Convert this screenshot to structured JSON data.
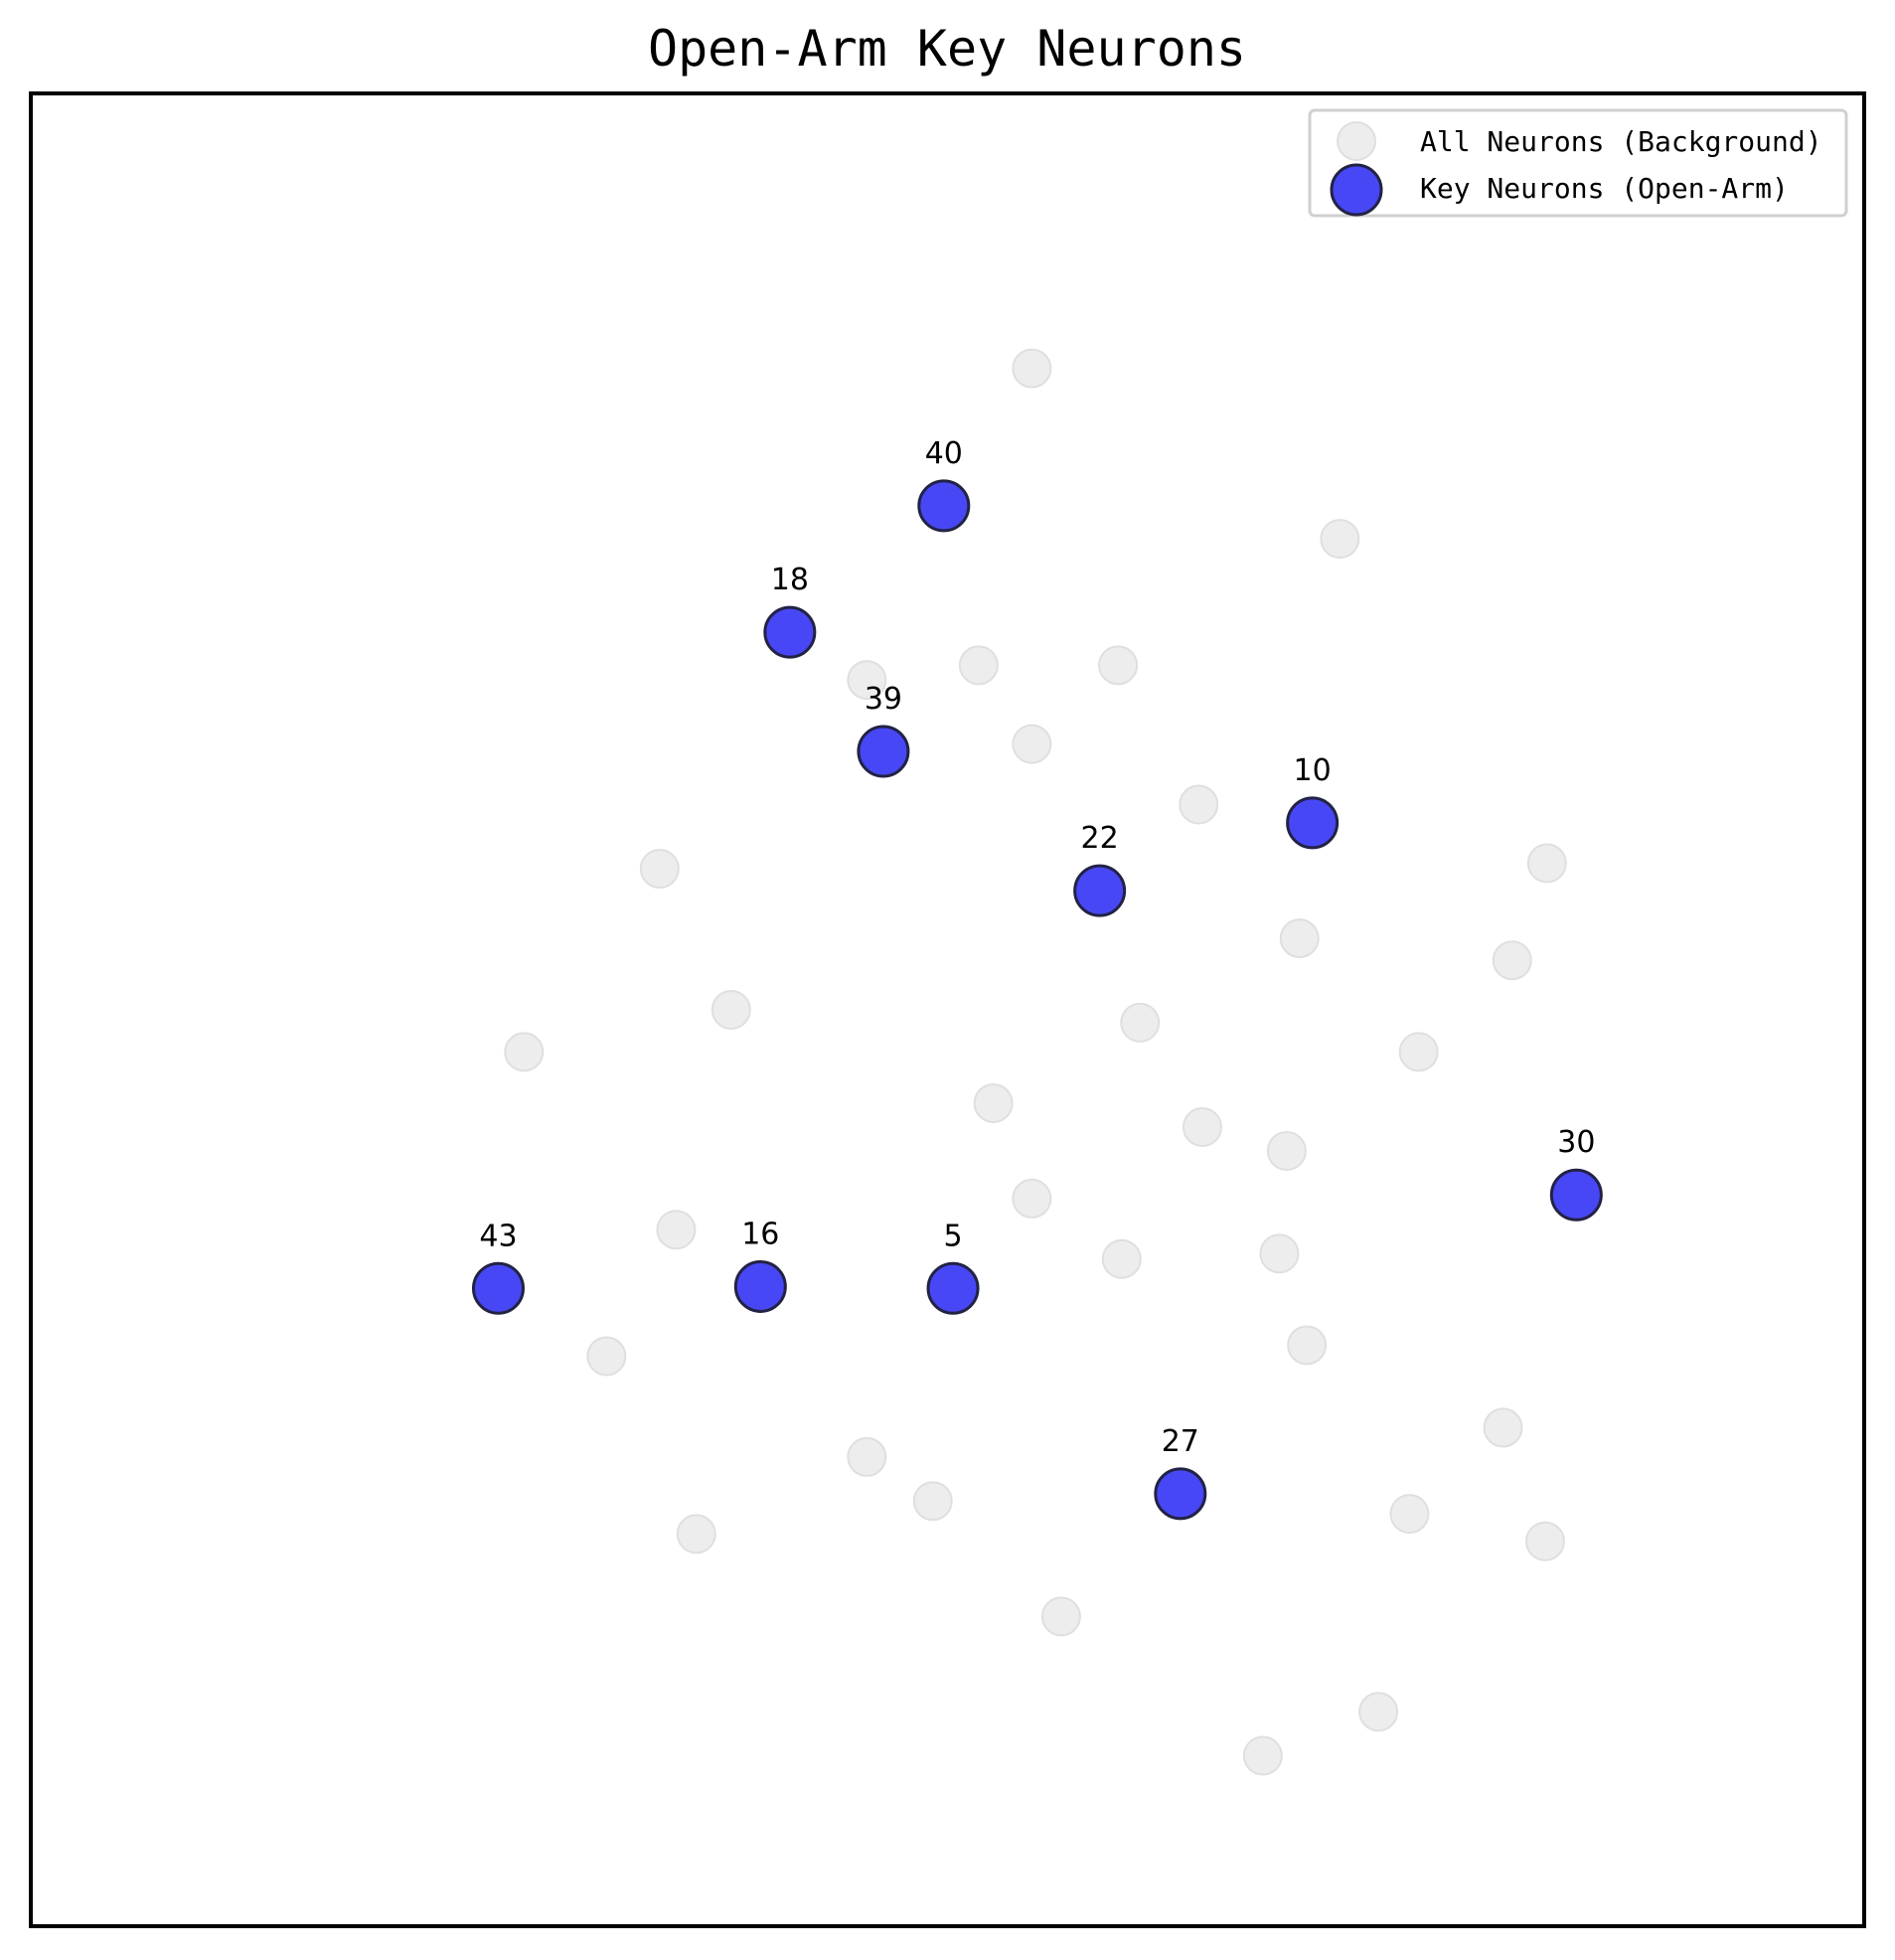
{
  "chart_data": {
    "type": "scatter",
    "title": "Open-Arm Key Neurons",
    "xlabel": "",
    "ylabel": "",
    "xlim": [
      0,
      1000
    ],
    "ylim": [
      0,
      1000
    ],
    "ticks": "none",
    "grid": false,
    "legend_position": "top-right",
    "series": [
      {
        "name": "All Neurons (Background)",
        "color": "#e6e6e6",
        "points": [
          {
            "x": 546,
            "y": 850
          },
          {
            "x": 714,
            "y": 757
          },
          {
            "x": 456,
            "y": 680
          },
          {
            "x": 517,
            "y": 688
          },
          {
            "x": 593,
            "y": 688
          },
          {
            "x": 546,
            "y": 645
          },
          {
            "x": 637,
            "y": 612
          },
          {
            "x": 343,
            "y": 577
          },
          {
            "x": 827,
            "y": 580
          },
          {
            "x": 692,
            "y": 539
          },
          {
            "x": 808,
            "y": 527
          },
          {
            "x": 382,
            "y": 500
          },
          {
            "x": 269,
            "y": 477
          },
          {
            "x": 605,
            "y": 493
          },
          {
            "x": 757,
            "y": 477
          },
          {
            "x": 525,
            "y": 449
          },
          {
            "x": 639,
            "y": 436
          },
          {
            "x": 685,
            "y": 423
          },
          {
            "x": 546,
            "y": 397
          },
          {
            "x": 352,
            "y": 380
          },
          {
            "x": 595,
            "y": 364
          },
          {
            "x": 681,
            "y": 367
          },
          {
            "x": 314,
            "y": 311
          },
          {
            "x": 696,
            "y": 317
          },
          {
            "x": 456,
            "y": 256
          },
          {
            "x": 803,
            "y": 272
          },
          {
            "x": 492,
            "y": 232
          },
          {
            "x": 363,
            "y": 214
          },
          {
            "x": 752,
            "y": 225
          },
          {
            "x": 826,
            "y": 210
          },
          {
            "x": 562,
            "y": 169
          },
          {
            "x": 735,
            "y": 117
          },
          {
            "x": 672,
            "y": 93
          }
        ]
      },
      {
        "name": "Key Neurons (Open-Arm)",
        "color": "#4747f5",
        "points": [
          {
            "x": 498,
            "y": 775,
            "label": "40"
          },
          {
            "x": 414,
            "y": 706,
            "label": "18"
          },
          {
            "x": 465,
            "y": 641,
            "label": "39"
          },
          {
            "x": 699,
            "y": 602,
            "label": "10"
          },
          {
            "x": 583,
            "y": 565,
            "label": "22"
          },
          {
            "x": 843,
            "y": 399,
            "label": "30"
          },
          {
            "x": 255,
            "y": 348,
            "label": "43"
          },
          {
            "x": 398,
            "y": 349,
            "label": "16"
          },
          {
            "x": 503,
            "y": 348,
            "label": "5"
          },
          {
            "x": 627,
            "y": 236,
            "label": "27"
          }
        ]
      }
    ]
  }
}
